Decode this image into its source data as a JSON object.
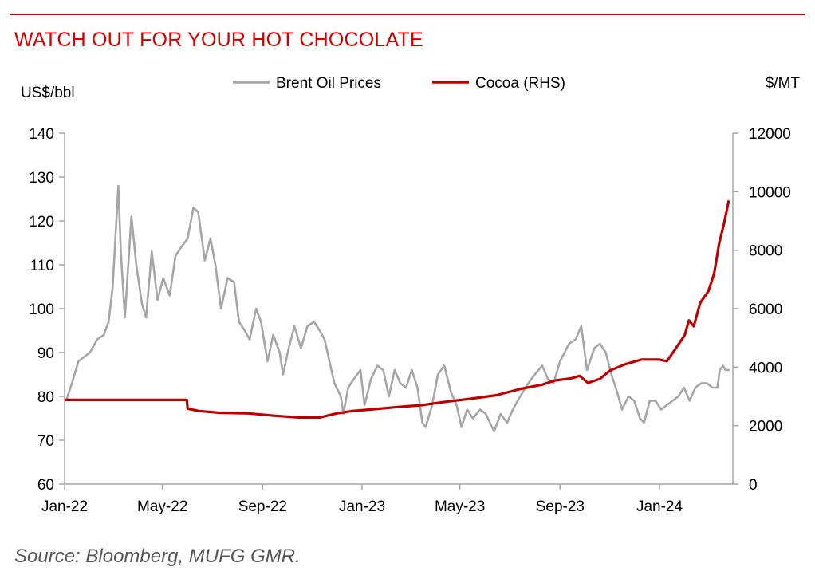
{
  "title": "WATCH OUT FOR YOUR HOT CHOCOLATE",
  "source": "Source: Bloomberg, MUFG GMR.",
  "chart_data": {
    "type": "line",
    "left_axis_label": "US$/bbl",
    "right_axis_label": "$/MT",
    "left_ylim": [
      60,
      140
    ],
    "right_ylim": [
      0,
      12000
    ],
    "left_ticks": [
      "60",
      "70",
      "80",
      "90",
      "100",
      "110",
      "120",
      "130",
      "140"
    ],
    "right_ticks": [
      "0",
      "2000",
      "4000",
      "6000",
      "8000",
      "10000",
      "12000"
    ],
    "x_ticks": [
      "Jan-22",
      "May-22",
      "Sep-22",
      "Jan-23",
      "May-23",
      "Sep-23",
      "Jan-24"
    ],
    "x_range": [
      "2022-01-01",
      "2024-03-31"
    ],
    "grid": false,
    "legend_position": "top",
    "series": [
      {
        "name": "Brent Oil Prices",
        "axis": "left",
        "color": "#a6a6a6",
        "points": [
          [
            "2022-01-03",
            79
          ],
          [
            "2022-01-10",
            83
          ],
          [
            "2022-01-18",
            88
          ],
          [
            "2022-01-25",
            89
          ],
          [
            "2022-02-01",
            90
          ],
          [
            "2022-02-10",
            93
          ],
          [
            "2022-02-18",
            94
          ],
          [
            "2022-02-24",
            97
          ],
          [
            "2022-03-01",
            105
          ],
          [
            "2022-03-08",
            128
          ],
          [
            "2022-03-11",
            113
          ],
          [
            "2022-03-16",
            98
          ],
          [
            "2022-03-24",
            121
          ],
          [
            "2022-03-30",
            110
          ],
          [
            "2022-04-06",
            101
          ],
          [
            "2022-04-11",
            98
          ],
          [
            "2022-04-18",
            113
          ],
          [
            "2022-04-25",
            102
          ],
          [
            "2022-05-02",
            107
          ],
          [
            "2022-05-10",
            103
          ],
          [
            "2022-05-17",
            112
          ],
          [
            "2022-05-24",
            114
          ],
          [
            "2022-06-01",
            116
          ],
          [
            "2022-06-08",
            123
          ],
          [
            "2022-06-14",
            122
          ],
          [
            "2022-06-22",
            111
          ],
          [
            "2022-06-29",
            116
          ],
          [
            "2022-07-05",
            110
          ],
          [
            "2022-07-12",
            100
          ],
          [
            "2022-07-20",
            107
          ],
          [
            "2022-07-28",
            106
          ],
          [
            "2022-08-03",
            97
          ],
          [
            "2022-08-10",
            95
          ],
          [
            "2022-08-16",
            93
          ],
          [
            "2022-08-24",
            100
          ],
          [
            "2022-08-30",
            97
          ],
          [
            "2022-09-07",
            88
          ],
          [
            "2022-09-14",
            94
          ],
          [
            "2022-09-22",
            90
          ],
          [
            "2022-09-26",
            85
          ],
          [
            "2022-10-03",
            91
          ],
          [
            "2022-10-10",
            96
          ],
          [
            "2022-10-18",
            91
          ],
          [
            "2022-10-26",
            96
          ],
          [
            "2022-11-03",
            97
          ],
          [
            "2022-11-10",
            95
          ],
          [
            "2022-11-16",
            93
          ],
          [
            "2022-11-22",
            88
          ],
          [
            "2022-11-28",
            83
          ],
          [
            "2022-12-06",
            80
          ],
          [
            "2022-12-09",
            76
          ],
          [
            "2022-12-15",
            82
          ],
          [
            "2022-12-22",
            84
          ],
          [
            "2022-12-30",
            86
          ],
          [
            "2023-01-04",
            78
          ],
          [
            "2023-01-12",
            84
          ],
          [
            "2023-01-20",
            87
          ],
          [
            "2023-01-27",
            86
          ],
          [
            "2023-02-03",
            80
          ],
          [
            "2023-02-10",
            86
          ],
          [
            "2023-02-17",
            83
          ],
          [
            "2023-02-24",
            82
          ],
          [
            "2023-03-03",
            86
          ],
          [
            "2023-03-10",
            82
          ],
          [
            "2023-03-16",
            74
          ],
          [
            "2023-03-20",
            73
          ],
          [
            "2023-03-28",
            78
          ],
          [
            "2023-04-04",
            85
          ],
          [
            "2023-04-12",
            87
          ],
          [
            "2023-04-20",
            81
          ],
          [
            "2023-04-27",
            78
          ],
          [
            "2023-05-03",
            73
          ],
          [
            "2023-05-10",
            77
          ],
          [
            "2023-05-17",
            75
          ],
          [
            "2023-05-26",
            77
          ],
          [
            "2023-06-02",
            76
          ],
          [
            "2023-06-12",
            72
          ],
          [
            "2023-06-20",
            76
          ],
          [
            "2023-06-28",
            74
          ],
          [
            "2023-07-05",
            77
          ],
          [
            "2023-07-14",
            80
          ],
          [
            "2023-07-24",
            83
          ],
          [
            "2023-08-01",
            85
          ],
          [
            "2023-08-10",
            87
          ],
          [
            "2023-08-17",
            84
          ],
          [
            "2023-08-24",
            83
          ],
          [
            "2023-09-01",
            88
          ],
          [
            "2023-09-12",
            92
          ],
          [
            "2023-09-20",
            93
          ],
          [
            "2023-09-27",
            96
          ],
          [
            "2023-10-04",
            86
          ],
          [
            "2023-10-13",
            91
          ],
          [
            "2023-10-20",
            92
          ],
          [
            "2023-10-27",
            90
          ],
          [
            "2023-11-03",
            85
          ],
          [
            "2023-11-10",
            81
          ],
          [
            "2023-11-16",
            77
          ],
          [
            "2023-11-24",
            80
          ],
          [
            "2023-12-01",
            79
          ],
          [
            "2023-12-08",
            75
          ],
          [
            "2023-12-13",
            74
          ],
          [
            "2023-12-20",
            79
          ],
          [
            "2023-12-27",
            79
          ],
          [
            "2024-01-03",
            77
          ],
          [
            "2024-01-10",
            78
          ],
          [
            "2024-01-17",
            79
          ],
          [
            "2024-01-24",
            80
          ],
          [
            "2024-01-31",
            82
          ],
          [
            "2024-02-07",
            79
          ],
          [
            "2024-02-14",
            82
          ],
          [
            "2024-02-21",
            83
          ],
          [
            "2024-02-28",
            83
          ],
          [
            "2024-03-06",
            82
          ],
          [
            "2024-03-12",
            82
          ],
          [
            "2024-03-15",
            86
          ],
          [
            "2024-03-19",
            87
          ],
          [
            "2024-03-22",
            86
          ],
          [
            "2024-03-27",
            86
          ]
        ]
      },
      {
        "name": "Cocoa (RHS)",
        "axis": "right",
        "color": "#c00000",
        "points": [
          [
            "2022-01-01",
            2880
          ],
          [
            "2022-03-15",
            2880
          ],
          [
            "2022-05-31",
            2880
          ],
          [
            "2022-06-01",
            2580
          ],
          [
            "2022-06-15",
            2500
          ],
          [
            "2022-07-10",
            2440
          ],
          [
            "2022-08-15",
            2420
          ],
          [
            "2022-09-15",
            2340
          ],
          [
            "2022-10-15",
            2280
          ],
          [
            "2022-11-10",
            2280
          ],
          [
            "2022-12-01",
            2420
          ],
          [
            "2022-12-20",
            2500
          ],
          [
            "2023-01-15",
            2560
          ],
          [
            "2023-02-15",
            2640
          ],
          [
            "2023-03-15",
            2700
          ],
          [
            "2023-04-15",
            2820
          ],
          [
            "2023-05-15",
            2920
          ],
          [
            "2023-06-15",
            3040
          ],
          [
            "2023-07-15",
            3260
          ],
          [
            "2023-08-10",
            3400
          ],
          [
            "2023-08-25",
            3540
          ],
          [
            "2023-09-15",
            3620
          ],
          [
            "2023-09-25",
            3700
          ],
          [
            "2023-10-05",
            3460
          ],
          [
            "2023-10-20",
            3600
          ],
          [
            "2023-11-01",
            3880
          ],
          [
            "2023-11-20",
            4100
          ],
          [
            "2023-12-10",
            4260
          ],
          [
            "2024-01-01",
            4260
          ],
          [
            "2024-01-10",
            4200
          ],
          [
            "2024-01-20",
            4600
          ],
          [
            "2024-02-01",
            5100
          ],
          [
            "2024-02-06",
            5600
          ],
          [
            "2024-02-12",
            5400
          ],
          [
            "2024-02-20",
            6200
          ],
          [
            "2024-03-01",
            6600
          ],
          [
            "2024-03-08",
            7200
          ],
          [
            "2024-03-14",
            8200
          ],
          [
            "2024-03-20",
            8900
          ],
          [
            "2024-03-26",
            9700
          ]
        ]
      }
    ]
  }
}
